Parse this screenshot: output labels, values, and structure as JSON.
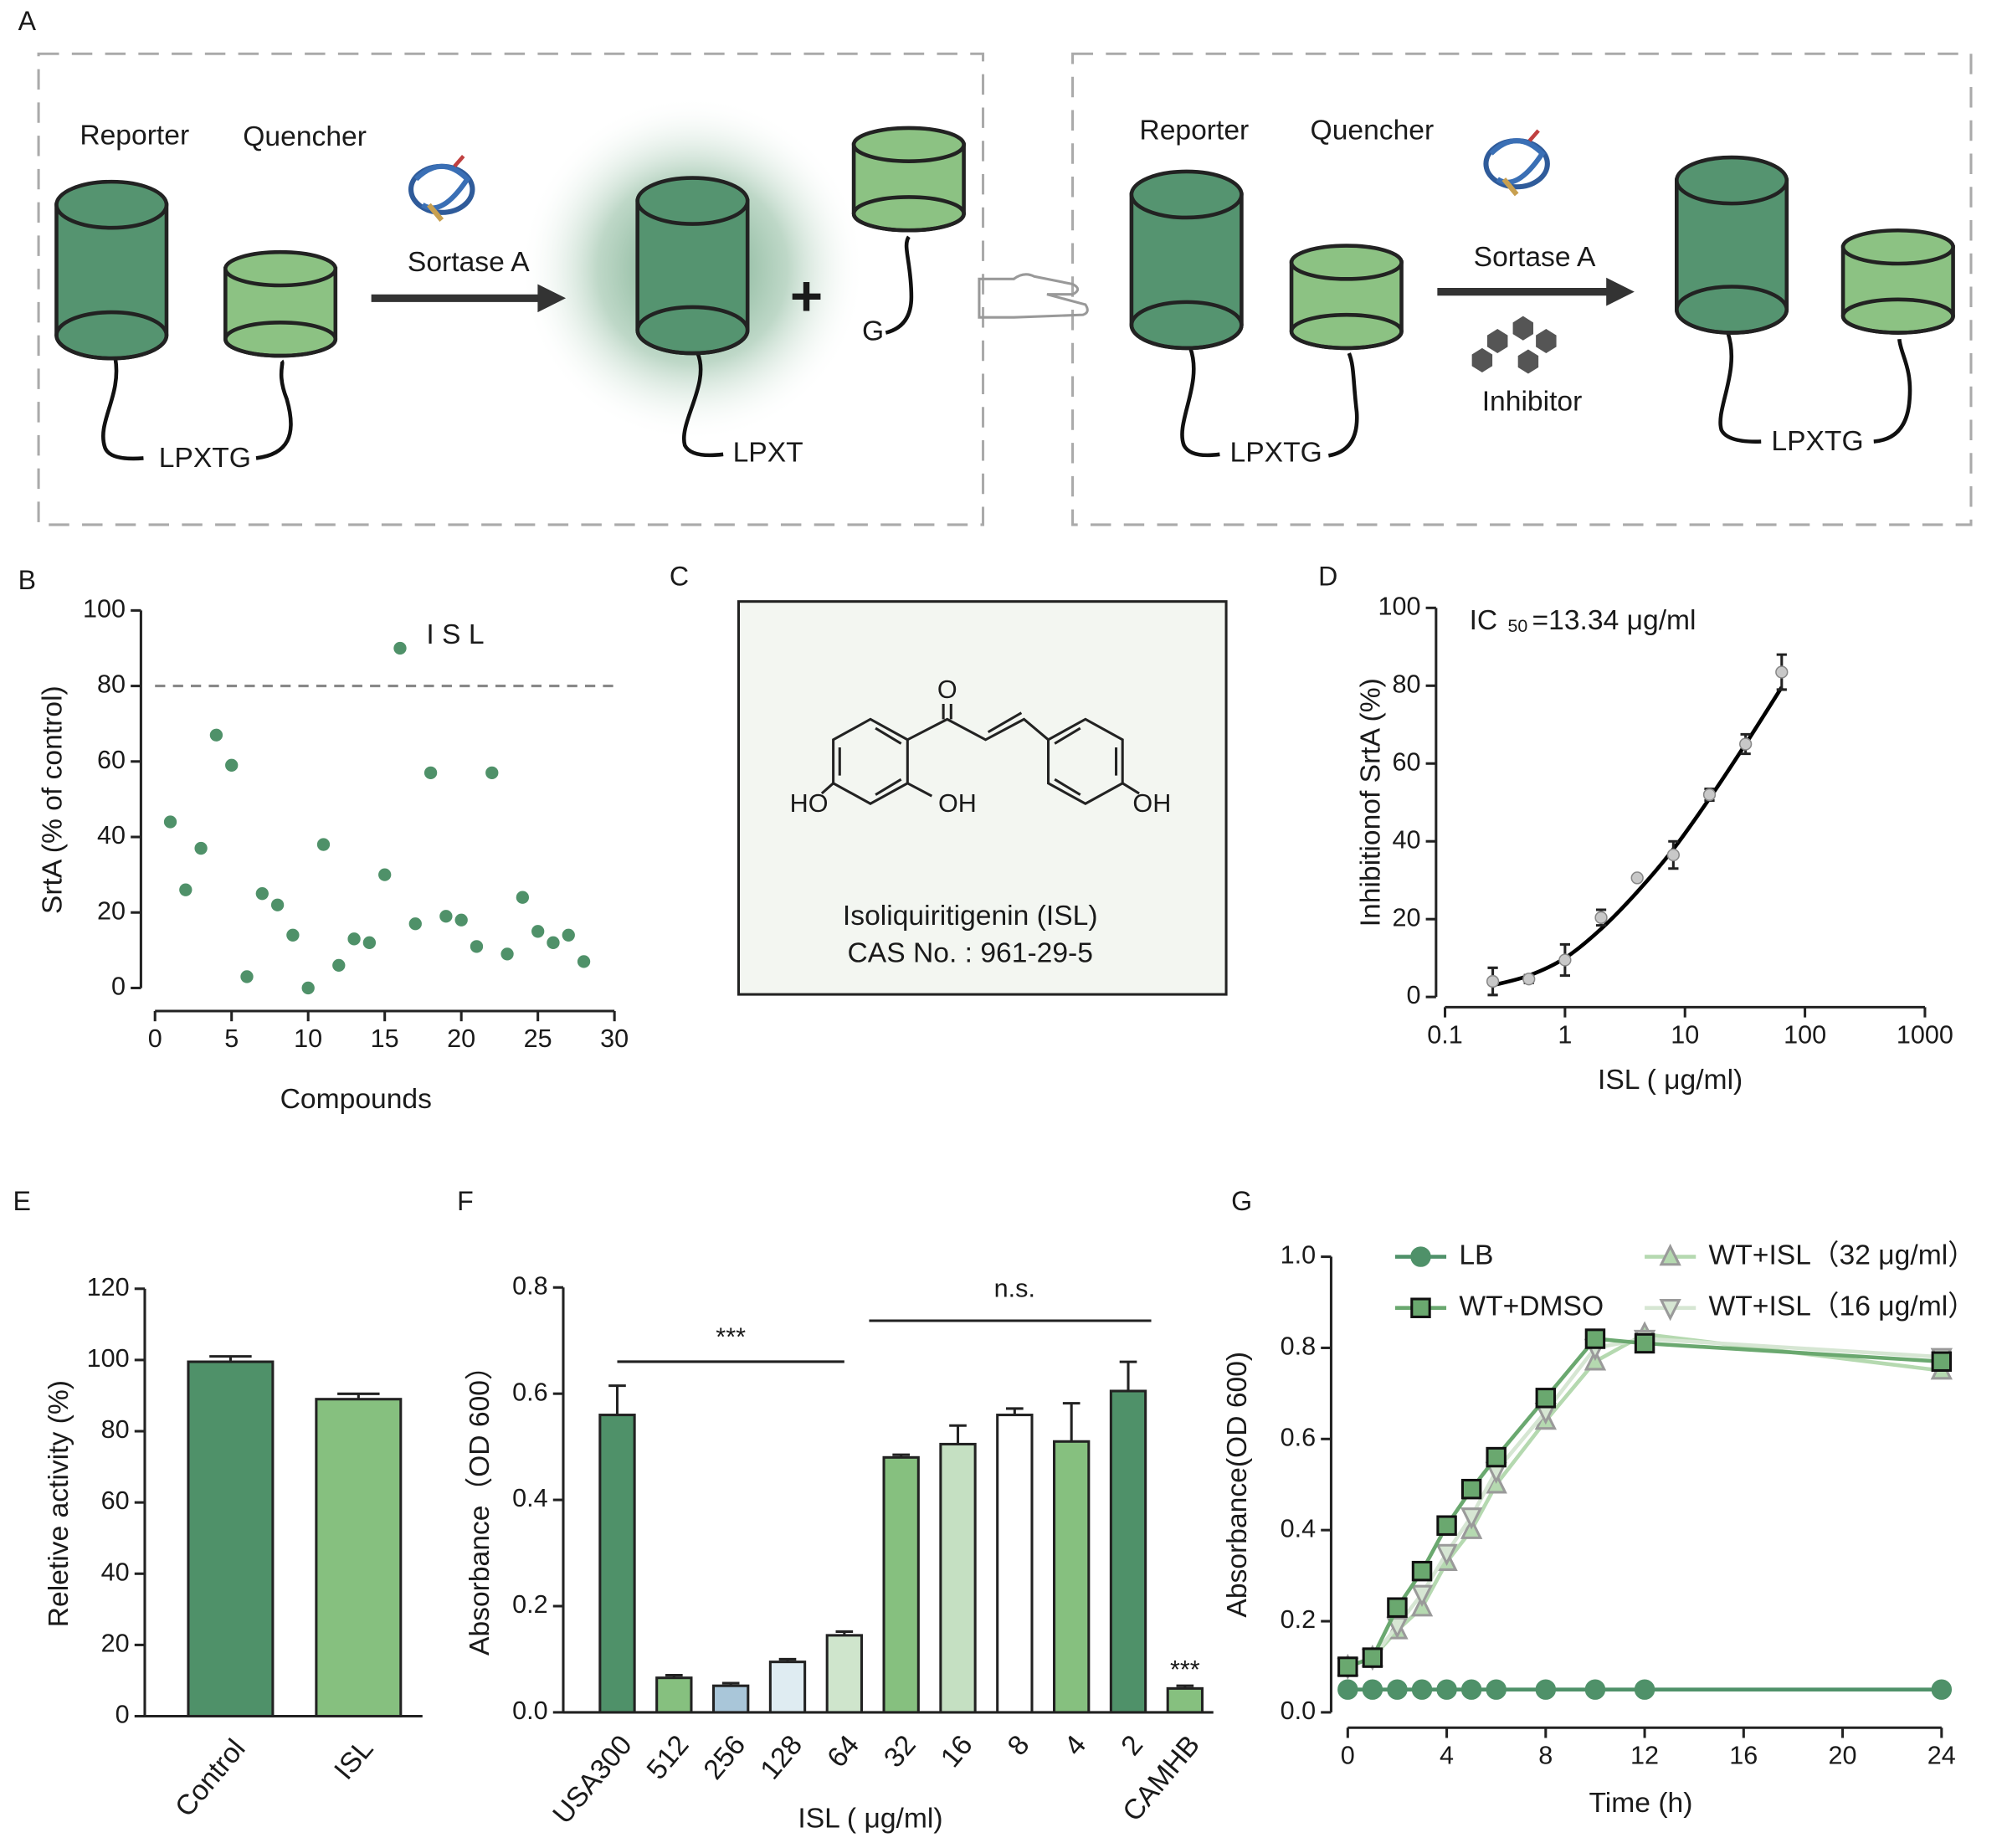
{
  "panel_labels": [
    "A",
    "B",
    "C",
    "D",
    "E",
    "F",
    "G"
  ],
  "diagram": {
    "left": {
      "reporter": "Reporter",
      "quencher": "Quencher",
      "enzyme": "Sortase A",
      "substrate": "LPXTG",
      "product": "LPXT",
      "plus": "+",
      "released": "G"
    },
    "right": {
      "reporter": "Reporter",
      "quencher": "Quencher",
      "enzyme": "Sortase A",
      "inhibitor": "Inhibitor",
      "substrate": "LPXTG",
      "product": "LPXTG"
    }
  },
  "structure": {
    "atoms": [
      "O",
      "HO",
      "OH",
      "OH"
    ],
    "name": "Isoliquiritigenin (ISL)",
    "cas": "CAS No. : 961-29-5"
  },
  "chart_data": [
    {
      "type": "scatter",
      "x": [
        1,
        2,
        3,
        4,
        5,
        6,
        7,
        8,
        9,
        10,
        11,
        12,
        13,
        14,
        15,
        16,
        17,
        18,
        19,
        20,
        21,
        22,
        23,
        24,
        25,
        26,
        27,
        28
      ],
      "values": [
        44,
        26,
        37,
        67,
        59,
        3,
        25,
        22,
        14,
        0,
        38,
        6,
        13,
        12,
        30,
        90,
        17,
        57,
        19,
        18,
        11,
        57,
        9,
        24,
        15,
        12,
        14,
        7
      ],
      "color": "#4f9169",
      "xlim": [
        0,
        30
      ],
      "ylim": [
        0,
        100
      ],
      "xticks": [
        0,
        5,
        10,
        15,
        20,
        25,
        30
      ],
      "yticks": [
        0,
        20,
        40,
        60,
        80,
        100
      ],
      "xlabel": "Compounds",
      "ylabel": "SrtA  (% of control)",
      "threshold": 80,
      "annotation": "I S L"
    },
    {
      "type": "scatter",
      "xscale": "log",
      "x": [
        0.25,
        0.5,
        1,
        2,
        4,
        8,
        16,
        32,
        64
      ],
      "values": [
        4,
        4.6,
        9.5,
        20.4,
        30.6,
        36.5,
        52,
        65,
        83.5
      ],
      "errors": [
        3.5,
        1,
        4,
        2,
        0.5,
        3.5,
        1.5,
        2.5,
        4.5
      ],
      "fit": [
        3,
        5.5,
        10,
        17.5,
        27,
        38,
        51,
        65,
        79.6
      ],
      "color": "#c8c8c8",
      "fit_color": "#000000",
      "xlim": [
        0.1,
        1000
      ],
      "ylim": [
        0,
        100
      ],
      "xticks": [
        0.1,
        1,
        10,
        100,
        1000
      ],
      "yticks": [
        0,
        20,
        40,
        60,
        80,
        100
      ],
      "xlabel": "ISL ( μg/ml)",
      "ylabel": "Inhibitionof SrtA (%)",
      "annotation": {
        "symbol": "IC",
        "subscript": "50",
        "text": "=13.34 μg/ml"
      }
    },
    {
      "type": "bar",
      "categories": [
        "Control",
        "ISL"
      ],
      "values": [
        99.5,
        89
      ],
      "errors": [
        1.5,
        1.5
      ],
      "colors": [
        "#4f9169",
        "#86c07f"
      ],
      "ylim": [
        0,
        120
      ],
      "yticks": [
        0,
        20,
        40,
        60,
        80,
        100,
        120
      ],
      "ylabel": "Reletive activity (%)"
    },
    {
      "type": "bar",
      "categories": [
        "USA300",
        "512",
        "256",
        "128",
        "64",
        "32",
        "16",
        "8",
        "4",
        "2",
        "CAMHB"
      ],
      "values": [
        0.56,
        0.065,
        0.05,
        0.095,
        0.145,
        0.48,
        0.505,
        0.56,
        0.51,
        0.605,
        0.045
      ],
      "errors": [
        0.055,
        0.005,
        0.005,
        0.005,
        0.007,
        0.005,
        0.035,
        0.012,
        0.072,
        0.055,
        0.005
      ],
      "colors": [
        "#4f9169",
        "#86c07f",
        "#a9c6d9",
        "#dfecf2",
        "#cfe5cc",
        "#86c07f",
        "#c5e0c2",
        "#ffffff",
        "#86c07f",
        "#4f9169",
        "#86c07f"
      ],
      "ylim": [
        0,
        0.8
      ],
      "yticks": [
        {
          "value": 0,
          "label": "0.0"
        },
        0.2,
        0.4,
        0.6,
        0.8
      ],
      "xlabel": "ISL ( μg/ml)",
      "ylabel": "Absorbance（OD 600）",
      "significance": [
        "***",
        "n.s.",
        "***"
      ]
    },
    {
      "type": "line",
      "x": [
        0,
        1,
        2,
        3,
        4,
        5,
        6,
        8,
        10,
        12,
        24
      ],
      "series": [
        {
          "name": "LB",
          "color": "#4f9169",
          "marker": "circle",
          "values": [
            0.05,
            0.05,
            0.05,
            0.05,
            0.05,
            0.05,
            0.05,
            0.05,
            0.05,
            0.05,
            0.05
          ]
        },
        {
          "name": "WT+ISL（32 μg/ml）",
          "color": "#b5d9b0",
          "marker": "triangle-up",
          "values": [
            0.1,
            0.12,
            0.18,
            0.23,
            0.33,
            0.4,
            0.5,
            0.64,
            0.77,
            0.83,
            0.75
          ]
        },
        {
          "name": "WT+ISL（16 μg/ml）",
          "color": "#d6e6d3",
          "marker": "triangle-down",
          "values": [
            0.1,
            0.12,
            0.19,
            0.26,
            0.35,
            0.43,
            0.53,
            0.66,
            0.8,
            0.82,
            0.78
          ]
        },
        {
          "name": "WT+DMSO",
          "color": "#6aa86f",
          "marker": "square",
          "values": [
            0.1,
            0.12,
            0.23,
            0.31,
            0.41,
            0.49,
            0.56,
            0.69,
            0.82,
            0.81,
            0.77
          ]
        }
      ],
      "xlim": [
        0,
        24
      ],
      "ylim": [
        0,
        1
      ],
      "xticks": [
        0,
        4,
        8,
        12,
        16,
        20,
        24
      ],
      "yticks": [
        {
          "value": 0,
          "label": "0.0"
        },
        0.2,
        0.4,
        0.6,
        0.8,
        {
          "value": 1,
          "label": "1.0"
        }
      ],
      "xlabel": "Time (h)",
      "ylabel": "Absorbance(OD 600)"
    }
  ]
}
